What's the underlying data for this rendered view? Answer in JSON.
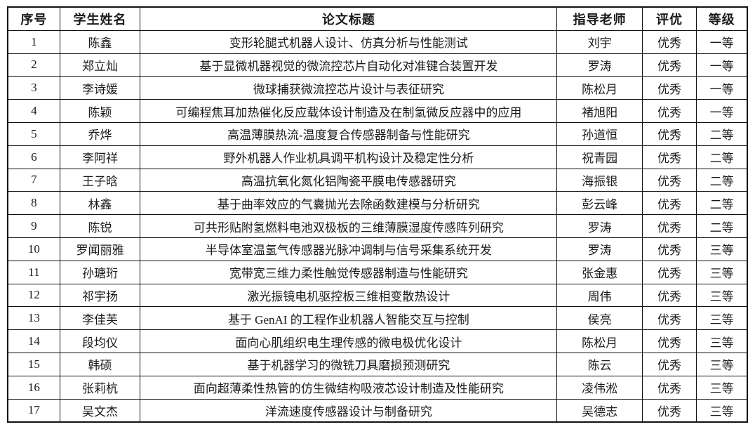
{
  "table": {
    "headers": [
      "序号",
      "学生姓名",
      "论文标题",
      "指导老师",
      "评优",
      "等级"
    ],
    "rows": [
      {
        "no": "1",
        "student": "陈鑫",
        "title": "变形轮腿式机器人设计、仿真分析与性能测试",
        "advisor": "刘宇",
        "rating": "优秀",
        "grade": "一等"
      },
      {
        "no": "2",
        "student": "郑立灿",
        "title": "基于显微机器视觉的微流控芯片自动化对准键合装置开发",
        "advisor": "罗涛",
        "rating": "优秀",
        "grade": "一等"
      },
      {
        "no": "3",
        "student": "李诗媛",
        "title": "微球捕获微流控芯片设计与表征研究",
        "advisor": "陈松月",
        "rating": "优秀",
        "grade": "一等"
      },
      {
        "no": "4",
        "student": "陈颖",
        "title": "可编程焦耳加热催化反应载体设计制造及在制氢微反应器中的应用",
        "advisor": "褚旭阳",
        "rating": "优秀",
        "grade": "一等"
      },
      {
        "no": "5",
        "student": "乔烨",
        "title": "高温薄膜热流-温度复合传感器制备与性能研究",
        "advisor": "孙道恒",
        "rating": "优秀",
        "grade": "二等"
      },
      {
        "no": "6",
        "student": "李阿祥",
        "title": "野外机器人作业机具调平机构设计及稳定性分析",
        "advisor": "祝青园",
        "rating": "优秀",
        "grade": "二等"
      },
      {
        "no": "7",
        "student": "王子晗",
        "title": "高温抗氧化氮化铝陶瓷平膜电传感器研究",
        "advisor": "海振银",
        "rating": "优秀",
        "grade": "二等"
      },
      {
        "no": "8",
        "student": "林鑫",
        "title": "基于曲率效应的气囊抛光去除函数建模与分析研究",
        "advisor": "彭云峰",
        "rating": "优秀",
        "grade": "二等"
      },
      {
        "no": "9",
        "student": "陈锐",
        "title": "可共形贴附氢燃料电池双极板的三维薄膜湿度传感阵列研究",
        "advisor": "罗涛",
        "rating": "优秀",
        "grade": "二等"
      },
      {
        "no": "10",
        "student": "罗闻丽雅",
        "title": "半导体室温氢气传感器光脉冲调制与信号采集系统开发",
        "advisor": "罗涛",
        "rating": "优秀",
        "grade": "三等"
      },
      {
        "no": "11",
        "student": "孙瑭珩",
        "title": "宽带宽三维力柔性触觉传感器制造与性能研究",
        "advisor": "张金惠",
        "rating": "优秀",
        "grade": "三等"
      },
      {
        "no": "12",
        "student": "祁宇扬",
        "title": "激光振镜电机驱控板三维相变散热设计",
        "advisor": "周伟",
        "rating": "优秀",
        "grade": "三等"
      },
      {
        "no": "13",
        "student": "李佳芙",
        "title": "基于 GenAI 的工程作业机器人智能交互与控制",
        "advisor": "侯亮",
        "rating": "优秀",
        "grade": "三等"
      },
      {
        "no": "14",
        "student": "段均仪",
        "title": "面向心肌组织电生理传感的微电极优化设计",
        "advisor": "陈松月",
        "rating": "优秀",
        "grade": "三等"
      },
      {
        "no": "15",
        "student": "韩硕",
        "title": "基于机器学习的微铣刀具磨损预测研究",
        "advisor": "陈云",
        "rating": "优秀",
        "grade": "三等"
      },
      {
        "no": "16",
        "student": "张莉杭",
        "title": "面向超薄柔性热管的仿生微结构吸液芯设计制造及性能研究",
        "advisor": "凌伟淞",
        "rating": "优秀",
        "grade": "三等"
      },
      {
        "no": "17",
        "student": "吴文杰",
        "title": "洋流速度传感器设计与制备研究",
        "advisor": "吴德志",
        "rating": "优秀",
        "grade": "三等"
      }
    ]
  }
}
